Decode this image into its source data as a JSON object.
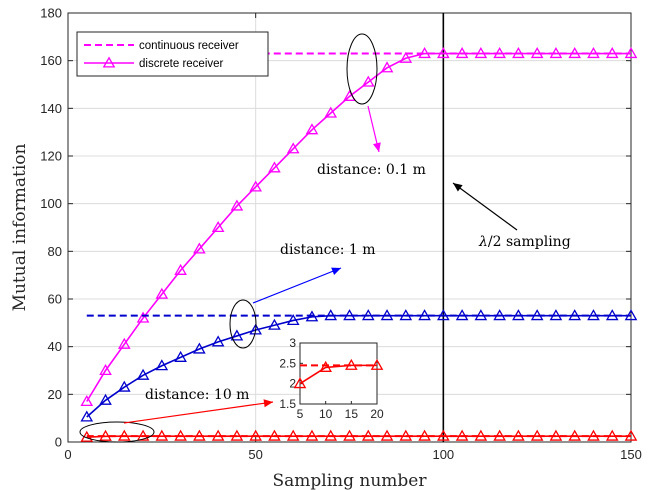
{
  "chart_data": {
    "type": "line",
    "xlabel": "Sampling number",
    "ylabel": "Mutual information",
    "xlim": [
      0,
      150
    ],
    "ylim": [
      0,
      180
    ],
    "xticks": [
      "0",
      "50",
      "100",
      "150"
    ],
    "yticks": [
      "0",
      "20",
      "40",
      "60",
      "80",
      "100",
      "120",
      "140",
      "160",
      "180"
    ],
    "grid": true,
    "legend": {
      "placement": "top-left",
      "entries": [
        "continuous receiver",
        "discrete receiver"
      ]
    },
    "x": [
      5,
      10,
      15,
      20,
      25,
      30,
      35,
      40,
      45,
      50,
      55,
      60,
      65,
      70,
      75,
      80,
      85,
      90,
      95,
      100,
      105,
      110,
      115,
      120,
      125,
      130,
      135,
      140,
      145,
      150
    ],
    "series": [
      {
        "name": "discrete receiver",
        "label": "distance: 0.1 m",
        "color": "#ff00ff",
        "values": [
          17,
          30,
          41,
          52,
          62,
          72,
          81,
          90,
          99,
          107,
          115,
          123,
          131,
          138,
          145,
          151,
          157,
          161,
          163,
          163,
          163,
          163,
          163,
          163,
          163,
          163,
          163,
          163,
          163,
          163
        ],
        "continuous": 163
      },
      {
        "name": "discrete receiver",
        "label": "distance: 1 m",
        "color": "#0000cc",
        "values": [
          10.5,
          17.5,
          23,
          28,
          32,
          35.5,
          39,
          42,
          44.5,
          47,
          49,
          51,
          52.5,
          53,
          53,
          53,
          53,
          53,
          53,
          53,
          53,
          53,
          53,
          53,
          53,
          53,
          53,
          53,
          53,
          53
        ],
        "continuous": 53
      },
      {
        "name": "discrete receiver",
        "label": "distance: 10 m",
        "color": "#ff0000",
        "values": [
          2.0,
          2.4,
          2.45,
          2.45,
          2.45,
          2.45,
          2.45,
          2.45,
          2.45,
          2.45,
          2.45,
          2.45,
          2.45,
          2.45,
          2.45,
          2.45,
          2.45,
          2.45,
          2.45,
          2.45,
          2.45,
          2.45,
          2.45,
          2.45,
          2.45,
          2.45,
          2.45,
          2.45,
          2.45,
          2.45
        ],
        "continuous": 2.45
      }
    ],
    "vline": {
      "x": 100,
      "label": "λ/2 sampling"
    },
    "inset": {
      "xlim": [
        5,
        20
      ],
      "ylim": [
        1.5,
        3
      ],
      "xticks": [
        "5",
        "10",
        "15",
        "20"
      ],
      "yticks": [
        "1.5",
        "2",
        "2.5",
        "3"
      ],
      "x": [
        5,
        10,
        15,
        20
      ],
      "values": [
        2.0,
        2.4,
        2.45,
        2.45
      ],
      "continuous": 2.45
    },
    "annotations": {
      "d01": "distance: 0.1 m",
      "d1": "distance: 1 m",
      "d10": "distance: 10 m",
      "lambda_prefix": "λ",
      "lambda_suffix": "/2 sampling"
    }
  }
}
